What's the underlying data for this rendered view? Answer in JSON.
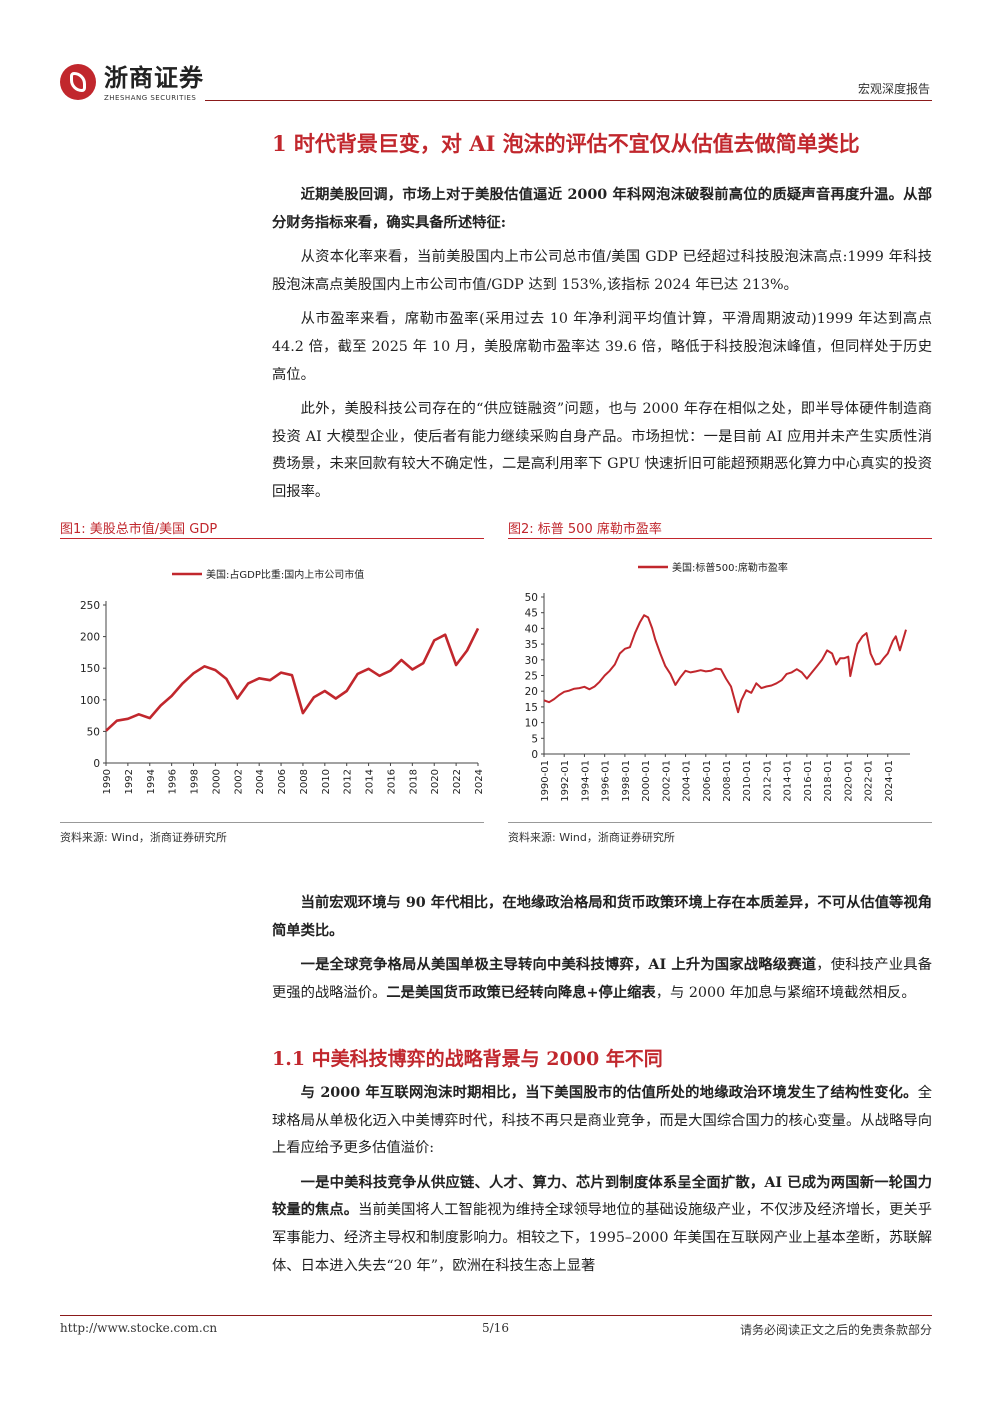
{
  "header": {
    "logo_cn": "浙商证券",
    "logo_en": "ZHESHANG SECURITIES",
    "report_type": "宏观深度报告"
  },
  "section1": {
    "title": "1 时代背景巨变，对 AI 泡沫的评估不宜仅从估值去做简单类比",
    "p1": "近期美股回调，市场上对于美股估值逼近 2000 年科网泡沫破裂前高位的质疑声音再度升温。从部分财务指标来看，确实具备所述特征:",
    "p2": "从资本化率来看，当前美股国内上市公司总市值/美国 GDP 已经超过科技股泡沫高点:1999 年科技股泡沫高点美股国内上市公司市值/GDP 达到 153%,该指标 2024 年已达 213%。",
    "p3": "从市盈率来看，席勒市盈率(采用过去 10 年净利润平均值计算，平滑周期波动)1999 年达到高点 44.2 倍，截至 2025 年 10 月，美股席勒市盈率达 39.6 倍，略低于科技股泡沫峰值，但同样处于历史高位。",
    "p4": "此外，美股科技公司存在的“供应链融资”问题，也与 2000 年存在相似之处，即半导体硬件制造商投资 AI 大模型企业，使后者有能力继续采购自身产品。市场担忧：一是目前 AI 应用并未产生实质性消费场景，未来回款有较大不确定性，二是高利用率下 GPU 快速折旧可能超预期恶化算力中心真实的投资回报率。",
    "p5": "当前宏观环境与 90 年代相比，在地缘政治格局和货币政策环境上存在本质差异，不可从估值等视角简单类比。",
    "p6_b1": "一是全球竞争格局从美国单极主导转向中美科技博弈，AI 上升为国家战略级赛道",
    "p6_t1": "，使科技产业具备更强的战略溢价。",
    "p6_b2": "二是美国货币政策已经转向降息+停止缩表",
    "p6_t2": "，与 2000 年加息与紧缩环境截然相反。"
  },
  "section11": {
    "title": "1.1 中美科技博弈的战略背景与 2000 年不同",
    "p1_b": "与 2000 年互联网泡沫时期相比，当下美国股市的估值所处的地缘政治环境发生了结构性变化。",
    "p1_t": "全球格局从单极化迈入中美博弈时代，科技不再只是商业竞争，而是大国综合国力的核心变量。从战略导向上看应给予更多估值溢价:",
    "p2_b": "一是中美科技竞争从供应链、人才、算力、芯片到制度体系呈全面扩散，AI 已成为两国新一轮国力较量的焦点。",
    "p2_t": "当前美国将人工智能视为维持全球领导地位的基础设施级产业，不仅涉及经济增长，更关乎军事能力、经济主导权和制度影响力。相较之下，1995–2000 年美国在互联网产业上基本垄断，苏联解体、日本进入失去“20 年”，欧洲在科技生态上显著"
  },
  "figures": {
    "fig1_title": "图1:  美股总市值/美国 GDP",
    "fig2_title": "图2:  标普 500 席勒市盈率",
    "source1": "资料来源:  Wind，浙商证券研究所",
    "source2": "资料来源:  Wind，浙商证券研究所"
  },
  "chart_data": [
    {
      "type": "line",
      "legend": "美国:占GDP比重:国内上市公司市值",
      "legend_position": "top",
      "ylim": [
        0,
        250
      ],
      "yticks": [
        0,
        50,
        100,
        150,
        200,
        250
      ],
      "xticks": [
        "1990",
        "1992",
        "1994",
        "1996",
        "1998",
        "2000",
        "2002",
        "2004",
        "2006",
        "2008",
        "2010",
        "2012",
        "2014",
        "2016",
        "2018",
        "2020",
        "2022",
        "2024"
      ],
      "color": "#c1272d",
      "x": [
        1990,
        1991,
        1992,
        1993,
        1994,
        1995,
        1996,
        1997,
        1998,
        1999,
        2000,
        2001,
        2002,
        2003,
        2004,
        2005,
        2006,
        2007,
        2008,
        2009,
        2010,
        2011,
        2012,
        2013,
        2014,
        2015,
        2016,
        2017,
        2018,
        2019,
        2020,
        2021,
        2022,
        2023,
        2024
      ],
      "values": [
        51,
        67,
        70,
        77,
        71,
        91,
        106,
        126,
        142,
        153,
        147,
        133,
        102,
        126,
        134,
        131,
        143,
        139,
        79,
        104,
        114,
        102,
        114,
        141,
        149,
        138,
        146,
        163,
        148,
        158,
        194,
        203,
        155,
        178,
        213
      ]
    },
    {
      "type": "line",
      "legend": "美国:标普500:席勒市盈率",
      "legend_position": "top",
      "ylim": [
        0,
        50
      ],
      "yticks": [
        0,
        5,
        10,
        15,
        20,
        25,
        30,
        35,
        40,
        45,
        50
      ],
      "xticks": [
        "1990-01",
        "1992-01",
        "1994-01",
        "1996-01",
        "1998-01",
        "2000-01",
        "2002-01",
        "2004-01",
        "2006-01",
        "2008-01",
        "2010-01",
        "2012-01",
        "2014-01",
        "2016-01",
        "2018-01",
        "2020-01",
        "2022-01",
        "2024-01"
      ],
      "color": "#c1272d",
      "x": [
        1990.0,
        1990.5,
        1991.0,
        1991.5,
        1992.0,
        1992.5,
        1993.0,
        1993.5,
        1994.0,
        1994.5,
        1995.0,
        1995.5,
        1996.0,
        1996.5,
        1997.0,
        1997.5,
        1998.0,
        1998.5,
        1999.0,
        1999.5,
        1999.9,
        2000.3,
        2000.7,
        2001.0,
        2001.5,
        2002.0,
        2002.5,
        2003.0,
        2003.5,
        2004.0,
        2004.5,
        2005.0,
        2005.5,
        2006.0,
        2006.5,
        2007.0,
        2007.5,
        2008.0,
        2008.5,
        2009.0,
        2009.2,
        2009.5,
        2010.0,
        2010.5,
        2011.0,
        2011.5,
        2012.0,
        2012.5,
        2013.0,
        2013.5,
        2014.0,
        2014.5,
        2015.0,
        2015.5,
        2016.0,
        2016.5,
        2017.0,
        2017.5,
        2018.0,
        2018.5,
        2018.9,
        2019.3,
        2019.7,
        2020.1,
        2020.3,
        2020.7,
        2021.0,
        2021.5,
        2021.9,
        2022.3,
        2022.8,
        2023.2,
        2023.6,
        2024.0,
        2024.5,
        2024.8,
        2025.2,
        2025.8
      ],
      "values": [
        17.1,
        16.5,
        17.5,
        18.8,
        19.8,
        20.2,
        20.8,
        21.0,
        21.4,
        20.6,
        21.5,
        23.0,
        25.0,
        26.5,
        28.5,
        32.0,
        33.5,
        34.0,
        38.5,
        42.0,
        44.2,
        43.5,
        40.0,
        36.5,
        32.0,
        28.0,
        25.5,
        22.0,
        24.5,
        26.5,
        26.0,
        26.3,
        26.7,
        26.3,
        26.5,
        27.2,
        27.0,
        24.0,
        21.5,
        15.5,
        13.3,
        17.0,
        20.3,
        19.5,
        22.5,
        21.0,
        21.5,
        21.8,
        22.5,
        23.5,
        25.5,
        26.0,
        27.0,
        26.0,
        24.0,
        26.0,
        28.0,
        30.0,
        33.0,
        32.0,
        28.5,
        30.5,
        30.5,
        31.0,
        24.8,
        31.0,
        35.0,
        37.5,
        38.5,
        32.0,
        28.5,
        28.8,
        30.5,
        32.0,
        36.0,
        37.5,
        33.0,
        39.6
      ]
    }
  ],
  "footer": {
    "url": "http://www.stocke.com.cn",
    "page": "5/16",
    "disclaimer": "请务必阅读正文之后的免责条款部分"
  }
}
